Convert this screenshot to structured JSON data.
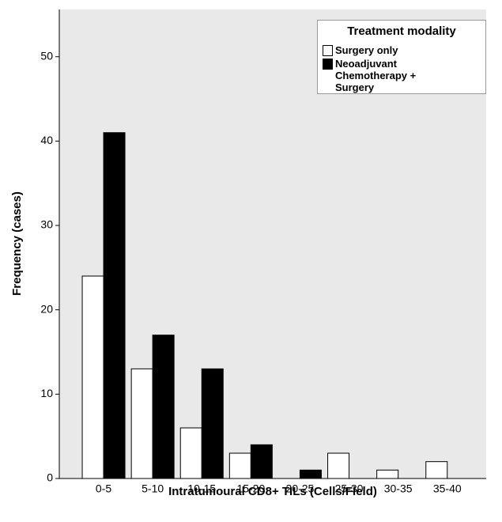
{
  "chart_data": {
    "type": "bar",
    "x_label": "Intratumoural CD8+ TILs (Cells/Field)",
    "y_label": "Frequency (cases)",
    "legend_title": "Treatment modality",
    "categories": [
      "0-5",
      "5-10",
      "10-15",
      "15-20",
      "20-25",
      "25-30",
      "30-35",
      "35-40"
    ],
    "series": [
      {
        "name": "Surgery only",
        "color": "#ffffff",
        "values": [
          24,
          13,
          6,
          3,
          0,
          3,
          1,
          2
        ]
      },
      {
        "name": "Neoadjuvant Chemotherapy + Surgery",
        "color": "#000000",
        "values": [
          41,
          17,
          13,
          4,
          1,
          0,
          0,
          0
        ]
      }
    ],
    "ylim": [
      0,
      55.6
    ],
    "yticks": [
      0,
      10,
      20,
      30,
      40,
      50
    ]
  }
}
